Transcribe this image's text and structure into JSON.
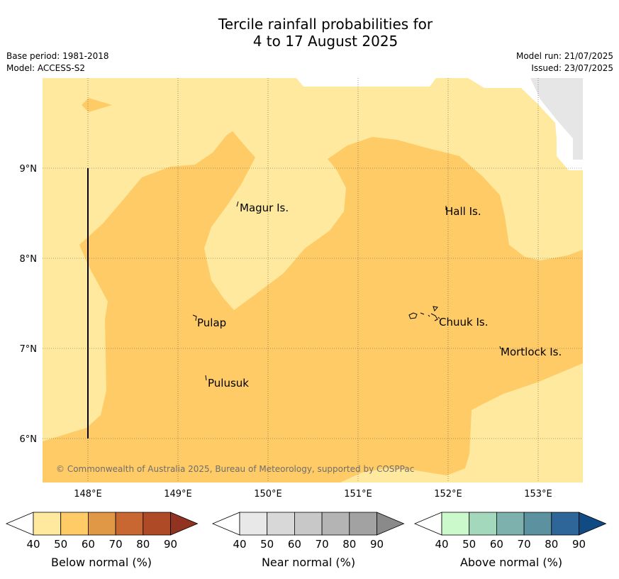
{
  "title": {
    "line1": "Tercile rainfall probabilities for",
    "line2": "4 to 17 August 2025"
  },
  "meta": {
    "base_period": "Base period: 1981-2018",
    "model": "Model: ACCESS-S2",
    "model_run": "Model run: 21/07/2025",
    "issued": "Issued: 23/07/2025"
  },
  "map": {
    "lat_labels": [
      "9°N",
      "8°N",
      "7°N",
      "6°N"
    ],
    "lon_labels": [
      "148°E",
      "149°E",
      "150°E",
      "151°E",
      "152°E",
      "153°E"
    ],
    "places": [
      {
        "name": "Magur Is."
      },
      {
        "name": "Hall Is."
      },
      {
        "name": "Pulap"
      },
      {
        "name": "Chuuk Is."
      },
      {
        "name": "Mortlock Is."
      },
      {
        "name": "Pulusuk"
      }
    ],
    "credit": "© Commonwealth of Australia 2025, Bureau of Meteorology, supported by COSPPac",
    "colors": {
      "below_40_50": "#fee99e",
      "below_50_60": "#fecb66",
      "no_data": "#e6e6e6"
    }
  },
  "colorbars": [
    {
      "label": "Below normal (%)",
      "ticks": [
        "40",
        "50",
        "60",
        "70",
        "80",
        "90"
      ],
      "colors": [
        "#ffffff",
        "#fee99e",
        "#fecb66",
        "#e09846",
        "#c96732",
        "#ae4a25",
        "#913320"
      ]
    },
    {
      "label": "Near normal (%)",
      "ticks": [
        "40",
        "50",
        "60",
        "70",
        "80",
        "90"
      ],
      "colors": [
        "#ffffff",
        "#e8e8e8",
        "#d8d8d8",
        "#c8c8c8",
        "#b4b4b4",
        "#a2a2a2",
        "#8a8a8a"
      ]
    },
    {
      "label": "Above normal (%)",
      "ticks": [
        "40",
        "50",
        "60",
        "70",
        "80",
        "90"
      ],
      "colors": [
        "#ffffff",
        "#ccf9cb",
        "#a3d8bd",
        "#7db1ae",
        "#5c929f",
        "#2f6699",
        "#114b84"
      ]
    }
  ]
}
